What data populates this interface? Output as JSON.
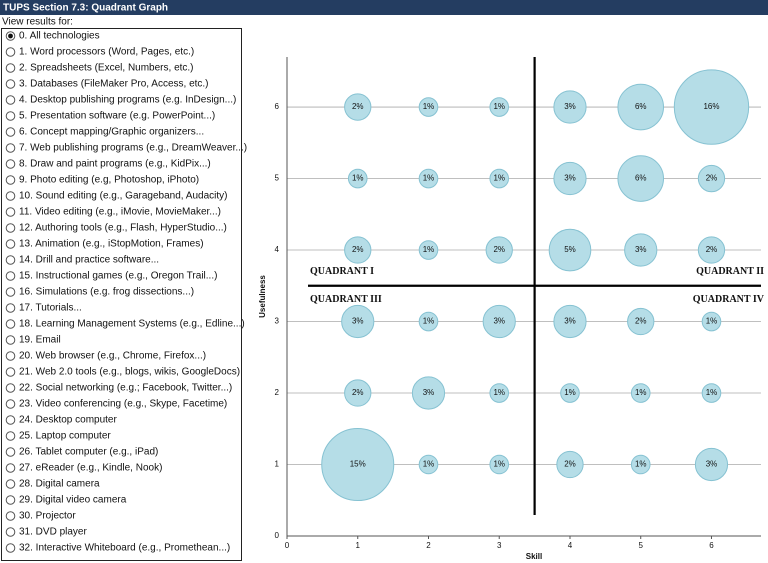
{
  "header": {
    "title": "TUPS Section 7.3: Quadrant Graph"
  },
  "panel": {
    "label": "View results for:",
    "selected": 0,
    "options": [
      "0. All technologies",
      "1. Word processors (Word, Pages, etc.)",
      "2. Spreadsheets (Excel, Numbers, etc.)",
      "3. Databases (FileMaker Pro, Access, etc.)",
      "4. Desktop publishing programs (e.g. InDesign...)",
      "5. Presentation software (e.g. PowerPoint...)",
      "6. Concept mapping/Graphic organizers...",
      "7. Web publishing programs (e.g., DreamWeaver...)",
      "8. Draw and paint programs (e.g., KidPix...)",
      "9. Photo editing (e.g, Photoshop, iPhoto)",
      "10. Sound editing (e.g., Garageband, Audacity)",
      "11. Video editing (e.g., iMovie, MovieMaker...)",
      "12. Authoring tools (e.g., Flash, HyperStudio...)",
      "13. Animation (e.g., iStopMotion, Frames)",
      "14. Drill and practice software...",
      "15. Instructional games (e.g., Oregon Trail...)",
      "16. Simulations (e.g. frog dissections...)",
      "17. Tutorials...",
      "18. Learning Management Systems (e.g., Edline...)",
      "19. Email",
      "20. Web browser (e.g., Chrome, Firefox...)",
      "21. Web 2.0 tools (e.g., blogs, wikis, GoogleDocs)",
      "22. Social networking (e.g.; Facebook, Twitter...)",
      "23. Video conferencing (e.g., Skype, Facetime)",
      "24. Desktop computer",
      "25. Laptop computer",
      "26. Tablet computer (e.g., iPad)",
      "27. eReader (e.g., Kindle, Nook)",
      "28. Digital camera",
      "29. Digital video camera",
      "30. Projector",
      "31. DVD player",
      "32. Interactive Whiteboard (e.g., Promethean...)"
    ]
  },
  "chart_data": {
    "type": "bubble",
    "x_label": "Skill",
    "y_label": "Usefulness",
    "color": "#b5dde7",
    "edge_color": "#86c2d2",
    "x": [
      1,
      2,
      3,
      4,
      5,
      6,
      1,
      2,
      3,
      4,
      5,
      6,
      1,
      2,
      3,
      4,
      5,
      6,
      1,
      2,
      3,
      4,
      5,
      6,
      1,
      2,
      3,
      4,
      5,
      6,
      1,
      2,
      3,
      4,
      5,
      6
    ],
    "y": [
      6,
      6,
      6,
      6,
      6,
      6,
      5,
      5,
      5,
      5,
      5,
      5,
      4,
      4,
      4,
      4,
      4,
      4,
      3,
      3,
      3,
      3,
      3,
      3,
      2,
      2,
      2,
      2,
      2,
      2,
      1,
      1,
      1,
      1,
      1,
      1
    ],
    "values": [
      2,
      1,
      1,
      3,
      6,
      16,
      1,
      1,
      1,
      3,
      6,
      2,
      2,
      1,
      2,
      5,
      3,
      2,
      3,
      1,
      3,
      3,
      2,
      1,
      2,
      3,
      1,
      1,
      1,
      1,
      15,
      1,
      1,
      2,
      1,
      3
    ],
    "value_labels": [
      "2%",
      "1%",
      "1%",
      "3%",
      "6%",
      "16%",
      "1%",
      "1%",
      "1%",
      "3%",
      "6%",
      "2%",
      "2%",
      "1%",
      "2%",
      "5%",
      "3%",
      "2%",
      "3%",
      "1%",
      "3%",
      "3%",
      "2%",
      "1%",
      "2%",
      "3%",
      "1%",
      "1%",
      "1%",
      "1%",
      "15%",
      "1%",
      "1%",
      "2%",
      "1%",
      "3%"
    ],
    "xlim": [
      0,
      6.7
    ],
    "ylim": [
      0,
      6.7
    ],
    "xticks": [
      0,
      1,
      2,
      3,
      4,
      5,
      6
    ],
    "yticks": [
      0,
      1,
      2,
      3,
      4,
      5,
      6
    ],
    "grid": true,
    "quadrant_lines": {
      "x": 3.5,
      "y": 3.5
    },
    "annotations": [
      "QUADRANT I",
      "QUADRANT II",
      "QUADRANT III",
      "QUADRANT IV"
    ]
  }
}
